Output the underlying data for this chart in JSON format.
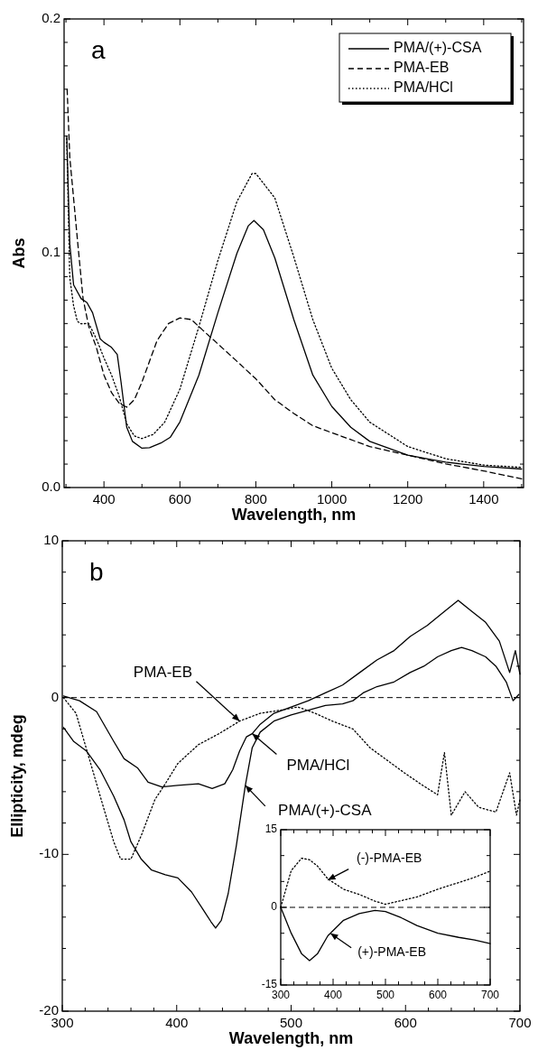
{
  "chart_data": [
    {
      "type": "line",
      "xlabel": "Wavelength, nm",
      "ylabel": "Abs",
      "annotations": [
        "a"
      ],
      "legend": "top right",
      "xlim": [
        295,
        1505
      ],
      "ylim": [
        0,
        0.2
      ],
      "xticks": [
        {
          "value": 300,
          "label": null
        },
        400,
        {
          "value": 500,
          "label": null
        },
        600,
        {
          "value": 700,
          "label": null
        },
        800,
        {
          "value": 900,
          "label": null
        },
        1000,
        {
          "value": 1100,
          "label": null
        },
        1200,
        {
          "value": 1300,
          "label": null
        },
        1400,
        {
          "value": 1500,
          "label": null
        }
      ],
      "yticks": [
        {
          "value": 0,
          "label": "0.0"
        },
        {
          "value": 0.01,
          "label": null
        },
        {
          "value": 0.02,
          "label": null
        },
        {
          "value": 0.03,
          "label": null
        },
        {
          "value": 0.04,
          "label": null
        },
        {
          "value": 0.05,
          "label": null
        },
        {
          "value": 0.06,
          "label": null
        },
        {
          "value": 0.07,
          "label": null
        },
        {
          "value": 0.08,
          "label": null
        },
        {
          "value": 0.09,
          "label": null
        },
        0.1,
        {
          "value": 0.11,
          "label": null
        },
        {
          "value": 0.12,
          "label": null
        },
        {
          "value": 0.13,
          "label": null
        },
        {
          "value": 0.14,
          "label": null
        },
        {
          "value": 0.15,
          "label": null
        },
        {
          "value": 0.16,
          "label": null
        },
        {
          "value": 0.17,
          "label": null
        },
        {
          "value": 0.18,
          "label": null
        },
        {
          "value": 0.19,
          "label": null
        },
        0.2
      ],
      "series": [
        {
          "name": "PMA/(+)-CSA",
          "color": "#000000",
          "line_style": "solid",
          "x": [
            302,
            310,
            320,
            340,
            355,
            370,
            390,
            400,
            420,
            435,
            445,
            460,
            475,
            500,
            520,
            550,
            575,
            600,
            650,
            700,
            750,
            780,
            795,
            820,
            850,
            900,
            950,
            1000,
            1050,
            1100,
            1200,
            1300,
            1400,
            1500
          ],
          "values": [
            0.15,
            0.104,
            0.0865,
            0.0806,
            0.079,
            0.0746,
            0.0635,
            0.062,
            0.0598,
            0.0568,
            0.045,
            0.0257,
            0.0197,
            0.0168,
            0.017,
            0.019,
            0.0215,
            0.028,
            0.048,
            0.0746,
            0.0999,
            0.1117,
            0.114,
            0.11,
            0.098,
            0.0717,
            0.048,
            0.0346,
            0.0257,
            0.0197,
            0.0138,
            0.0108,
            0.009,
            0.0079
          ]
        },
        {
          "name": "PMA-EB",
          "color": "#000000",
          "line_style": "dashed",
          "x": [
            303,
            310,
            330,
            345,
            360,
            380,
            400,
            420,
            440,
            460,
            480,
            500,
            540,
            570,
            600,
            630,
            660,
            700,
            750,
            800,
            850,
            900,
            950,
            1000,
            1100,
            1200,
            1300,
            1400,
            1500
          ],
          "values": [
            0.17,
            0.141,
            0.106,
            0.0806,
            0.0687,
            0.0598,
            0.048,
            0.0405,
            0.036,
            0.0343,
            0.0375,
            0.045,
            0.0628,
            0.07,
            0.0724,
            0.0717,
            0.0672,
            0.0613,
            0.0539,
            0.0464,
            0.0375,
            0.0316,
            0.0264,
            0.0234,
            0.0175,
            0.0138,
            0.0101,
            0.0071,
            0.0037
          ]
        },
        {
          "name": "PMA/HCl",
          "color": "#000000",
          "line_style": "dotted",
          "x": [
            302,
            310,
            320,
            330,
            340,
            360,
            380,
            400,
            420,
            440,
            460,
            480,
            500,
            530,
            560,
            600,
            650,
            700,
            750,
            790,
            800,
            850,
            900,
            950,
            1000,
            1050,
            1100,
            1200,
            1300,
            1400,
            1500
          ],
          "values": [
            0.149,
            0.0895,
            0.0776,
            0.0709,
            0.0699,
            0.07,
            0.0635,
            0.0553,
            0.048,
            0.039,
            0.0272,
            0.022,
            0.0209,
            0.0227,
            0.0279,
            0.042,
            0.0687,
            0.0969,
            0.122,
            0.134,
            0.134,
            0.1236,
            0.0984,
            0.0717,
            0.0509,
            0.0375,
            0.0279,
            0.0175,
            0.0123,
            0.0096,
            0.0086
          ]
        }
      ]
    },
    {
      "type": "line",
      "xlabel": "Wavelength, nm",
      "ylabel": "Ellipticity, mdeg",
      "xlim": [
        300,
        700
      ],
      "ylim": [
        -20,
        10
      ],
      "annotations": [
        "b",
        {
          "text": "PMA-EB",
          "x": 455,
          "y": -1.5
        },
        {
          "text": "PMA/HCl",
          "x": 466,
          "y": -2.3
        },
        {
          "text": "PMA/(+)-CSA",
          "x": 460,
          "y": -5.6
        }
      ],
      "xticks": [
        300,
        {
          "value": 320,
          "label": null
        },
        {
          "value": 340,
          "label": null
        },
        {
          "value": 360,
          "label": null
        },
        {
          "value": 380,
          "label": null
        },
        400,
        {
          "value": 420,
          "label": null
        },
        {
          "value": 440,
          "label": null
        },
        {
          "value": 460,
          "label": null
        },
        {
          "value": 480,
          "label": null
        },
        500,
        {
          "value": 520,
          "label": null
        },
        {
          "value": 540,
          "label": null
        },
        {
          "value": 560,
          "label": null
        },
        {
          "value": 580,
          "label": null
        },
        600,
        {
          "value": 620,
          "label": null
        },
        {
          "value": 640,
          "label": null
        },
        {
          "value": 660,
          "label": null
        },
        {
          "value": 680,
          "label": null
        },
        700
      ],
      "yticks": [
        -20,
        {
          "value": -18,
          "label": null
        },
        {
          "value": -16,
          "label": null
        },
        {
          "value": -14,
          "label": null
        },
        {
          "value": -12,
          "label": null
        },
        -10,
        {
          "value": -8,
          "label": null
        },
        {
          "value": -6,
          "label": null
        },
        {
          "value": -4,
          "label": null
        },
        {
          "value": -2,
          "label": null
        },
        0,
        {
          "value": 2,
          "label": null
        },
        {
          "value": 4,
          "label": null
        },
        {
          "value": 6,
          "label": null
        },
        {
          "value": 8,
          "label": null
        },
        10
      ],
      "ref_lines": [
        {
          "axis": "y",
          "value": 0,
          "line_style": "dashed",
          "color": "#000000"
        }
      ],
      "series": [
        {
          "color": "#000000",
          "line_style": "solid",
          "x": [
            301,
            310,
            321,
            333,
            345,
            354,
            360,
            369,
            378,
            390,
            401,
            413,
            422,
            430,
            434,
            439,
            445,
            452,
            460,
            466,
            473,
            485,
            500,
            515,
            530,
            545,
            554,
            563,
            575,
            590,
            604,
            616,
            628,
            640,
            649,
            658,
            670,
            679,
            688,
            694,
            699
          ],
          "values": [
            -1.9,
            -2.8,
            -3.4,
            -4.6,
            -6.3,
            -7.8,
            -9.2,
            -10.3,
            -11,
            -11.3,
            -11.5,
            -12.4,
            -13.4,
            -14.3,
            -14.7,
            -14.2,
            -12.5,
            -9.5,
            -5.6,
            -3.2,
            -2.2,
            -1.5,
            -1.1,
            -0.8,
            -0.5,
            -0.4,
            -0.2,
            0.3,
            0.7,
            1,
            1.6,
            2,
            2.6,
            3,
            3.2,
            3,
            2.6,
            2,
            1,
            -0.2,
            0.2
          ]
        },
        {
          "color": "#000000",
          "line_style": "solid",
          "x": [
            301,
            315,
            330,
            345,
            354,
            366,
            375,
            387,
            401,
            419,
            431,
            442,
            449,
            455,
            461,
            466,
            473,
            485,
            500,
            515,
            530,
            545,
            560,
            575,
            590,
            604,
            619,
            634,
            646,
            658,
            670,
            682,
            691,
            696,
            700
          ],
          "values": [
            0.1,
            -0.2,
            -0.9,
            -2.8,
            -3.9,
            -4.5,
            -5.4,
            -5.7,
            -5.6,
            -5.5,
            -5.8,
            -5.5,
            -4.6,
            -3.4,
            -2.5,
            -2.3,
            -1.7,
            -1,
            -0.6,
            -0.2,
            0.3,
            0.8,
            1.6,
            2.4,
            3,
            3.9,
            4.6,
            5.5,
            6.2,
            5.5,
            4.8,
            3.6,
            1.6,
            3,
            1.5
          ]
        },
        {
          "color": "#000000",
          "line_style": "dotted",
          "x": [
            301,
            312,
            324,
            336,
            345,
            351,
            360,
            369,
            381,
            390,
            401,
            419,
            437,
            455,
            473,
            491,
            506,
            521,
            536,
            554,
            569,
            584,
            599,
            613,
            628,
            634,
            640,
            652,
            664,
            679,
            691,
            697,
            700
          ],
          "values": [
            0,
            -1,
            -4,
            -7,
            -9.2,
            -10.3,
            -10.3,
            -8.8,
            -6.5,
            -5.5,
            -4.2,
            -3,
            -2.3,
            -1.5,
            -1,
            -0.8,
            -0.6,
            -1,
            -1.5,
            -2,
            -3.2,
            -4,
            -4.8,
            -5.5,
            -6.2,
            -3.5,
            -7.5,
            -6,
            -7,
            -7.3,
            -4.8,
            -7.5,
            -6.5
          ]
        }
      ]
    },
    {
      "type": "line",
      "xlim": [
        300,
        700
      ],
      "ylim": [
        -15,
        15
      ],
      "annotations": [
        {
          "text": "(-)-PMA-EB",
          "x": 390,
          "y": 5.3
        },
        {
          "text": "(+)-PMA-EB",
          "x": 395,
          "y": -5
        }
      ],
      "xticks": [
        300,
        {
          "value": 325,
          "label": null
        },
        {
          "value": 350,
          "label": null
        },
        {
          "value": 375,
          "label": null
        },
        400,
        {
          "value": 425,
          "label": null
        },
        {
          "value": 450,
          "label": null
        },
        {
          "value": 475,
          "label": null
        },
        500,
        {
          "value": 525,
          "label": null
        },
        {
          "value": 550,
          "label": null
        },
        {
          "value": 575,
          "label": null
        },
        600,
        {
          "value": 625,
          "label": null
        },
        {
          "value": 650,
          "label": null
        },
        {
          "value": 675,
          "label": null
        },
        700
      ],
      "yticks": [
        -15,
        {
          "value": -10,
          "label": null
        },
        {
          "value": -5,
          "label": null
        },
        0,
        {
          "value": 5,
          "label": null
        },
        {
          "value": 10,
          "label": null
        },
        15
      ],
      "ref_lines": [
        {
          "axis": "y",
          "value": 0,
          "line_style": "dashed",
          "color": "#000000"
        }
      ],
      "series": [
        {
          "color": "#000000",
          "line_style": "dotted",
          "x": [
            300,
            320,
            340,
            355,
            370,
            390,
            420,
            450,
            480,
            500,
            530,
            560,
            600,
            640,
            670,
            700
          ],
          "values": [
            0,
            7.1,
            9.5,
            9.2,
            8,
            5.5,
            3.5,
            2.5,
            1.2,
            0.6,
            1.3,
            2,
            3.5,
            4.8,
            5.8,
            7
          ]
        },
        {
          "color": "#000000",
          "line_style": "solid",
          "x": [
            300,
            320,
            340,
            355,
            370,
            390,
            420,
            450,
            480,
            500,
            530,
            560,
            600,
            640,
            670,
            700
          ],
          "values": [
            0,
            -5,
            -9,
            -10.3,
            -9,
            -5.5,
            -2.5,
            -1.2,
            -0.6,
            -0.8,
            -2,
            -3.5,
            -5,
            -5.8,
            -6.3,
            -7
          ]
        }
      ]
    }
  ]
}
